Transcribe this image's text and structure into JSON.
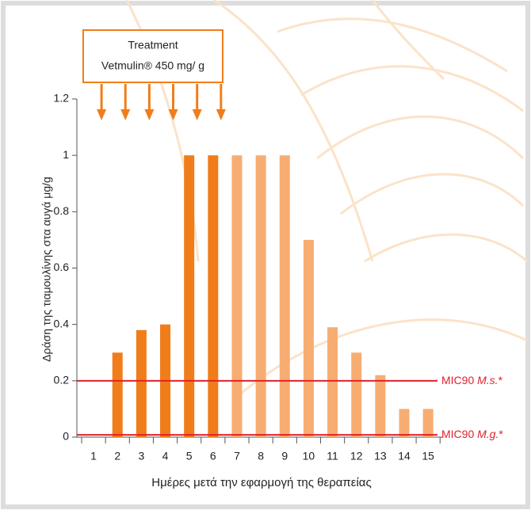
{
  "chart_data": {
    "type": "bar",
    "y_label": "Δράση της τιαμουλίνης στα αυγά μg/g",
    "x_label": "Ημέρες μετά την εφαρμογή της θεραπείας",
    "categories": [
      "1",
      "2",
      "3",
      "4",
      "5",
      "6",
      "7",
      "8",
      "9",
      "10",
      "11",
      "12",
      "13",
      "14",
      "15"
    ],
    "values": [
      0,
      0.3,
      0.38,
      0.4,
      1,
      1,
      1,
      1,
      1,
      0.7,
      0.39,
      0.3,
      0.22,
      0.1,
      0.1
    ],
    "colors": [
      "#f07d1a",
      "#f07d1a",
      "#f07d1a",
      "#f07d1a",
      "#f07d1a",
      "#f07d1a",
      "#f7ad72",
      "#f7ad72",
      "#f7ad72",
      "#f7ad72",
      "#f7ad72",
      "#f7ad72",
      "#f7ad72",
      "#f7ad72",
      "#f7ad72"
    ],
    "ylim": [
      0,
      1.2
    ],
    "yticks": [
      0,
      0.2,
      0.4,
      0.6,
      0.8,
      1,
      1.2
    ],
    "reference_lines": [
      {
        "value": 0.2,
        "color": "#e3202a",
        "prefix": "MIC90 ",
        "italic": "M.s.",
        "suffix": "*"
      },
      {
        "value": 0.008,
        "color": "#e3202a",
        "prefix": "MIC90 ",
        "italic": "M.g.",
        "suffix": "*"
      }
    ],
    "annotation": {
      "lines": [
        "Treatment",
        "Vetmulin® 450 mg/ g"
      ],
      "color": "#f07d1a",
      "days": [
        1,
        2,
        3,
        4,
        5,
        6
      ]
    }
  }
}
